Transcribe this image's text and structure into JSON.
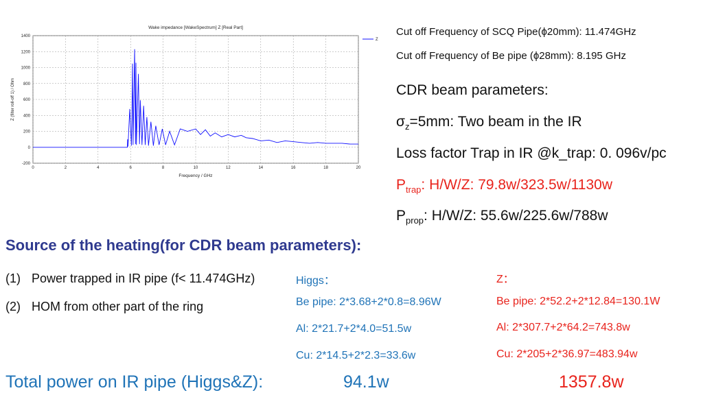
{
  "chart_data": {
    "type": "line",
    "title": "Wake impedance [WakeSpectrum] Z [Real Part]",
    "xlabel": "Frequency / GHz",
    "ylabel": "Z (filter roll-off 1) / Ohm",
    "xlim": [
      0,
      20
    ],
    "ylim": [
      -200,
      1400
    ],
    "x_ticks": [
      "0",
      "2",
      "4",
      "6",
      "8",
      "10",
      "12",
      "14",
      "16",
      "18",
      "20"
    ],
    "y_ticks": [
      "-200",
      "0",
      "200",
      "400",
      "600",
      "800",
      "1000",
      "1200",
      "1400"
    ],
    "grid": true,
    "legend": "top-right",
    "series": [
      {
        "name": "Z",
        "color": "#1010ff",
        "x": [
          0,
          5.8,
          5.82,
          5.84,
          5.95,
          6.05,
          6.1,
          6.12,
          6.15,
          6.25,
          6.3,
          6.33,
          6.36,
          6.48,
          6.55,
          6.6,
          6.7,
          6.8,
          6.9,
          7.0,
          7.1,
          7.25,
          7.4,
          7.55,
          7.75,
          7.95,
          8.15,
          8.4,
          8.7,
          9.05,
          9.5,
          10.0,
          10.3,
          10.6,
          10.9,
          11.2,
          11.6,
          12.0,
          12.4,
          12.8,
          13.1,
          13.5,
          14.0,
          14.5,
          15.0,
          15.5,
          16.0,
          16.5,
          17.0,
          17.5,
          18.0,
          18.5,
          19.0,
          19.5,
          20
        ],
        "y": [
          0,
          0,
          100,
          10,
          480,
          20,
          700,
          1050,
          30,
          1230,
          40,
          1060,
          30,
          920,
          40,
          590,
          30,
          520,
          30,
          380,
          20,
          320,
          20,
          270,
          30,
          230,
          30,
          200,
          30,
          230,
          200,
          230,
          160,
          220,
          140,
          180,
          130,
          160,
          130,
          150,
          120,
          110,
          80,
          90,
          60,
          80,
          70,
          60,
          50,
          60,
          50,
          50,
          50,
          40,
          40
        ]
      }
    ]
  },
  "cutoff": {
    "scq": "Cut off Frequency of SCQ Pipe(ϕ20mm): 11.474GHz",
    "be": "Cut off Frequency of Be pipe  (ϕ28mm):  8.195 GHz"
  },
  "params": {
    "title": "CDR beam parameters:",
    "sigma_sym": "σ",
    "sigma_sub": "z",
    "sigma_rest": "=5mm: Two beam in the IR",
    "loss": "Loss factor Trap in IR @k_trap: 0. 096v/pc",
    "ptrap_p": "P",
    "ptrap_sub": "trap",
    "ptrap_rest": ": H/W/Z: 79.8w/323.5w/1130w",
    "pprop_p": "P",
    "pprop_sub": "prop",
    "pprop_rest": ": H/W/Z: 55.6w/225.6w/788w"
  },
  "source": {
    "title": "Source of the heating(for CDR beam parameters):",
    "items": [
      {
        "num": "(1)",
        "text": "Power trapped in IR pipe (f< 11.474GHz)"
      },
      {
        "num": "(2)",
        "text": "HOM from other part of the ring"
      }
    ]
  },
  "higgs": {
    "title": "Higgs：",
    "be": "Be pipe: 2*3.68+2*0.8=8.96W",
    "al": "Al: 2*21.7+2*4.0=51.5w",
    "cu": "Cu: 2*14.5+2*2.3=33.6w"
  },
  "z": {
    "title": "Z：",
    "be": "Be pipe: 2*52.2+2*12.84=130.1W",
    "al": "Al: 2*307.7+2*64.2=743.8w",
    "cu": "Cu: 2*205+2*36.97=483.94w"
  },
  "total": {
    "label": "Total power on IR pipe (Higgs&Z):",
    "higgs": "94.1w",
    "z": "1357.8w"
  }
}
